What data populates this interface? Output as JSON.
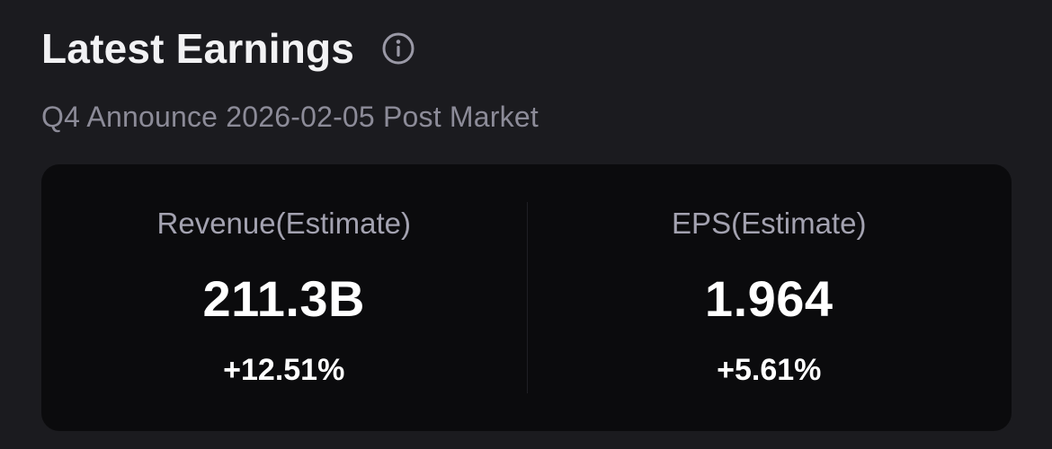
{
  "header": {
    "title": "Latest Earnings",
    "info_icon": "info-circle-icon",
    "subtitle": "Q4 Announce 2026-02-05 Post Market"
  },
  "metrics": [
    {
      "label": "Revenue(Estimate)",
      "value": "211.3B",
      "change": "+12.51%"
    },
    {
      "label": "EPS(Estimate)",
      "value": "1.964",
      "change": "+5.61%"
    }
  ],
  "colors": {
    "background": "#1b1b1f",
    "card": "#0b0b0d",
    "title": "#f2f2f4",
    "subtitle": "#8c8b98",
    "label": "#a3a2b0",
    "value": "#ffffff"
  }
}
